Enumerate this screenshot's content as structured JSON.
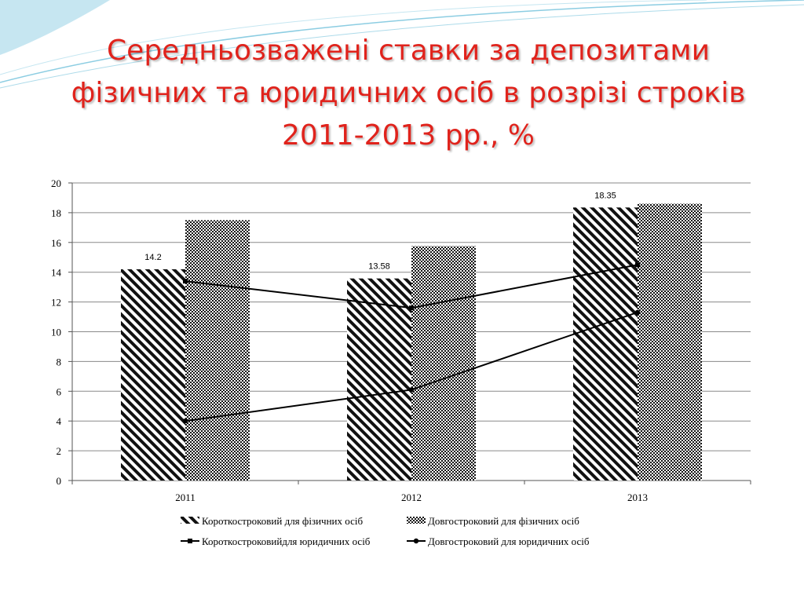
{
  "slide": {
    "title": "Середньозважені ставки за депозитами фізичних та юридичних осіб в розрізі строків 2011-2013 рр., %"
  },
  "colors": {
    "title": "#e0231c",
    "swoosh": "#5bb8d6",
    "line": "#000000"
  },
  "chart_data": {
    "type": "bar",
    "categories": [
      "2011",
      "2012",
      "2013"
    ],
    "ylim": [
      0,
      20
    ],
    "yticks": [
      "0",
      "2",
      "4",
      "6",
      "8",
      "10",
      "12",
      "14",
      "16",
      "18",
      "20"
    ],
    "grid": true,
    "legend_position": "bottom",
    "series": [
      {
        "name": "Короткостроковий для фізичних осіб",
        "kind": "bar",
        "pattern": "diagonal",
        "values": [
          14.2,
          13.58,
          18.35
        ],
        "labels": [
          "14.2",
          "13.58",
          "18.35"
        ]
      },
      {
        "name": "Довгостроковий для фізичних осіб",
        "kind": "bar",
        "pattern": "checker",
        "values": [
          17.5,
          15.75,
          18.6
        ]
      },
      {
        "name": "Короткостроковийдля юридичних осіб",
        "kind": "line",
        "marker": "square",
        "values": [
          13.4,
          11.6,
          14.5
        ]
      },
      {
        "name": "Довгостроковий для юридичних осіб",
        "kind": "line",
        "marker": "circle",
        "values": [
          4.0,
          6.1,
          11.3
        ]
      }
    ]
  }
}
